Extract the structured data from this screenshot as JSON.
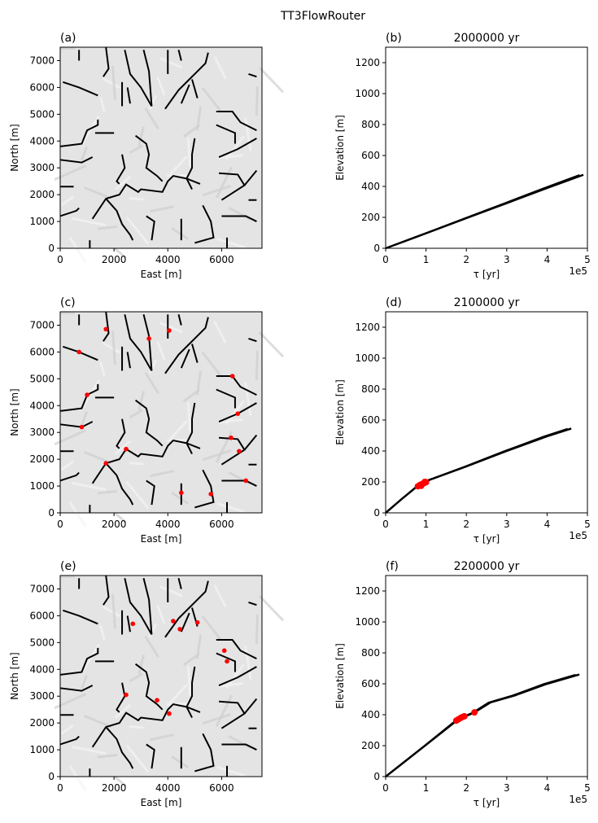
{
  "suptitle": "TT3FlowRouter",
  "chart_data": [
    {
      "panel": "(a)",
      "type": "map",
      "title": "",
      "xlabel": "East [m]",
      "ylabel": "North [m]",
      "xlim": [
        0,
        7500
      ],
      "ylim": [
        0,
        7500
      ],
      "xticks": [
        0,
        2000,
        4000,
        6000
      ],
      "yticks": [
        0,
        1000,
        2000,
        3000,
        4000,
        5000,
        6000,
        7000
      ],
      "background": "shaded-relief",
      "channel_color": "#000000",
      "points": []
    },
    {
      "panel": "(b)",
      "type": "line",
      "title": "2000000 yr",
      "xlabel": "τ [yr]",
      "ylabel": "Elevation [m]",
      "xlim": [
        0,
        500000
      ],
      "ylim": [
        0,
        1300
      ],
      "x_offset_label": "1e5",
      "xticks": [
        0,
        1,
        2,
        3,
        4,
        5
      ],
      "yticks": [
        0,
        200,
        400,
        600,
        800,
        1000,
        1200
      ],
      "series": [
        {
          "x": [
            0,
            100000,
            200000,
            300000,
            400000,
            490000
          ],
          "y": [
            0,
            97,
            195,
            292,
            390,
            475
          ],
          "color": "#000000"
        }
      ],
      "points": []
    },
    {
      "panel": "(c)",
      "type": "map",
      "title": "",
      "xlabel": "East [m]",
      "ylabel": "North [m]",
      "xlim": [
        0,
        7500
      ],
      "ylim": [
        0,
        7500
      ],
      "xticks": [
        0,
        2000,
        4000,
        6000
      ],
      "yticks": [
        0,
        1000,
        2000,
        3000,
        4000,
        5000,
        6000,
        7000
      ],
      "background": "shaded-relief",
      "channel_color": "#000000",
      "point_color": "#ff0000",
      "points": [
        [
          1700,
          6850
        ],
        [
          3300,
          6500
        ],
        [
          4050,
          6800
        ],
        [
          700,
          6000
        ],
        [
          1000,
          4400
        ],
        [
          800,
          3200
        ],
        [
          2450,
          2380
        ],
        [
          1700,
          1850
        ],
        [
          6400,
          5100
        ],
        [
          6600,
          3700
        ],
        [
          6350,
          2800
        ],
        [
          6650,
          2300
        ],
        [
          6900,
          1200
        ],
        [
          5600,
          700
        ],
        [
          4500,
          750
        ]
      ]
    },
    {
      "panel": "(d)",
      "type": "line",
      "title": "2100000 yr",
      "xlabel": "τ [yr]",
      "ylabel": "Elevation [m]",
      "xlim": [
        0,
        500000
      ],
      "ylim": [
        0,
        1300
      ],
      "x_offset_label": "1e5",
      "xticks": [
        0,
        1,
        2,
        3,
        4,
        5
      ],
      "yticks": [
        0,
        200,
        400,
        600,
        800,
        1000,
        1200
      ],
      "series": [
        {
          "x": [
            0,
            40000,
            75000,
            100000,
            200000,
            300000,
            400000,
            460000
          ],
          "y": [
            0,
            90,
            165,
            205,
            300,
            400,
            495,
            545
          ],
          "color": "#000000"
        }
      ],
      "points": [
        [
          80000,
          172
        ],
        [
          85000,
          180
        ],
        [
          90000,
          186
        ],
        [
          95000,
          192
        ],
        [
          100000,
          198
        ],
        [
          88000,
          175
        ],
        [
          97000,
          200
        ]
      ],
      "point_color": "#ff0000"
    },
    {
      "panel": "(e)",
      "type": "map",
      "title": "",
      "xlabel": "East [m]",
      "ylabel": "North [m]",
      "xlim": [
        0,
        7500
      ],
      "ylim": [
        0,
        7500
      ],
      "xticks": [
        0,
        2000,
        4000,
        6000
      ],
      "yticks": [
        0,
        1000,
        2000,
        3000,
        4000,
        5000,
        6000,
        7000
      ],
      "background": "shaded-relief",
      "channel_color": "#000000",
      "point_color": "#ff0000",
      "points": [
        [
          2700,
          5700
        ],
        [
          4200,
          5800
        ],
        [
          4450,
          5500
        ],
        [
          5100,
          5750
        ],
        [
          6100,
          4700
        ],
        [
          6200,
          4300
        ],
        [
          2450,
          3050
        ],
        [
          3600,
          2850
        ],
        [
          4050,
          2350
        ]
      ]
    },
    {
      "panel": "(f)",
      "type": "line",
      "title": "2200000 yr",
      "xlabel": "τ [yr]",
      "ylabel": "Elevation [m]",
      "xlim": [
        0,
        500000
      ],
      "ylim": [
        0,
        1300
      ],
      "x_offset_label": "1e5",
      "xticks": [
        0,
        1,
        2,
        3,
        4,
        5
      ],
      "yticks": [
        0,
        200,
        400,
        600,
        800,
        1000,
        1200
      ],
      "series": [
        {
          "x": [
            0,
            100000,
            180000,
            220000,
            260000,
            320000,
            400000,
            480000
          ],
          "y": [
            0,
            205,
            370,
            415,
            480,
            525,
            600,
            660
          ],
          "color": "#000000"
        }
      ],
      "points": [
        [
          175000,
          362
        ],
        [
          180000,
          370
        ],
        [
          185000,
          378
        ],
        [
          190000,
          385
        ],
        [
          195000,
          390
        ],
        [
          220000,
          415
        ]
      ],
      "point_color": "#ff0000"
    }
  ]
}
